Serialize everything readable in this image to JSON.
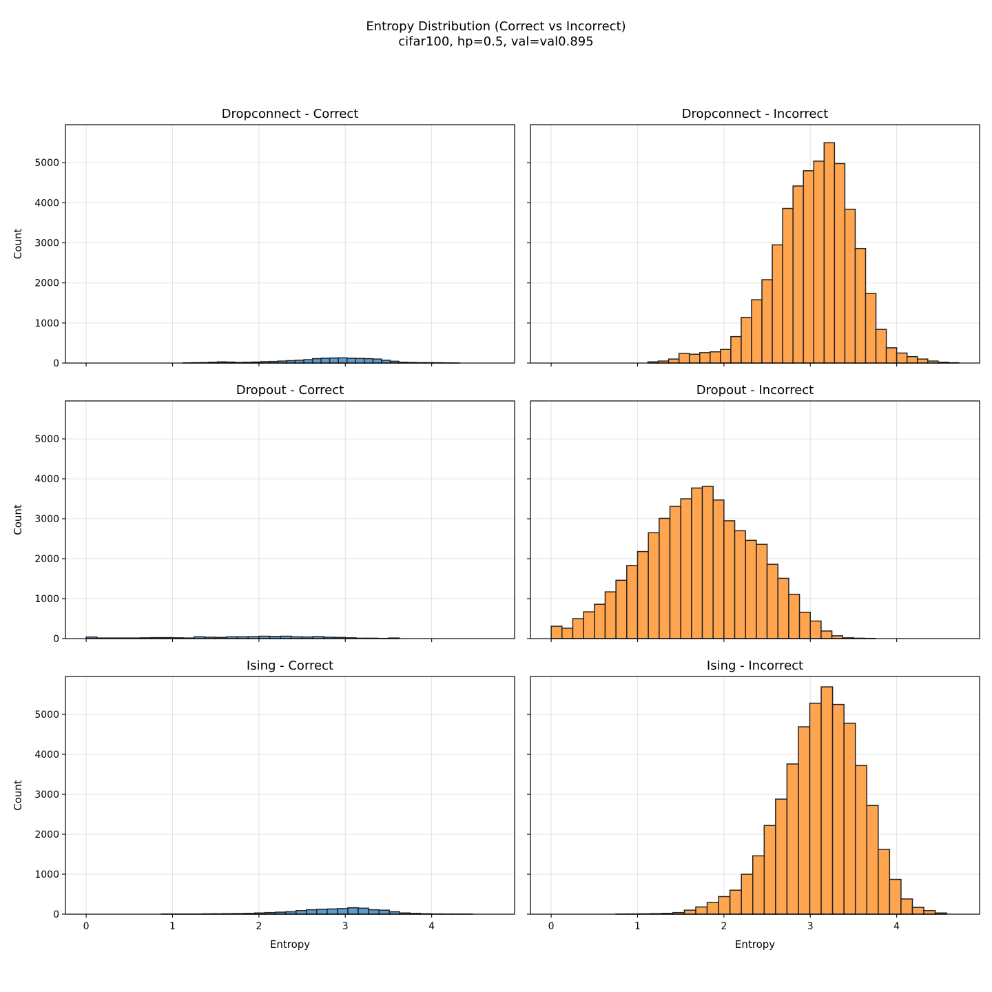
{
  "figure": {
    "title": "Entropy Distribution (Correct vs Incorrect)",
    "subtitle": "cifar100, hp=0.5, val=val0.895"
  },
  "colors": {
    "correct": "#5b9bcd",
    "incorrect": "#ffa54f",
    "edge": "#222222"
  },
  "chart_data": [
    {
      "type": "bar",
      "title": "Dropconnect - Correct",
      "series_kind": "correct",
      "ylabel": "Count",
      "xlabel": "",
      "xlim": [
        -0.24,
        4.96
      ],
      "ylim": [
        0,
        5950
      ],
      "xticks": [
        0,
        1,
        2,
        3,
        4
      ],
      "yticks": [
        0,
        1000,
        2000,
        3000,
        4000,
        5000
      ],
      "show_xticklabels": false,
      "show_yticklabels": true,
      "grid": true,
      "bin_start": 1.12,
      "bin_width": 0.1,
      "values": [
        5,
        10,
        12,
        20,
        30,
        25,
        15,
        20,
        25,
        35,
        40,
        50,
        60,
        70,
        85,
        110,
        120,
        125,
        130,
        120,
        115,
        110,
        100,
        70,
        45,
        20,
        15,
        10,
        10,
        8,
        5,
        3
      ]
    },
    {
      "type": "bar",
      "title": "Dropconnect - Incorrect",
      "series_kind": "incorrect",
      "ylabel": "",
      "xlabel": "",
      "xlim": [
        -0.24,
        4.96
      ],
      "ylim": [
        0,
        5950
      ],
      "xticks": [
        0,
        1,
        2,
        3,
        4
      ],
      "yticks": [
        0,
        1000,
        2000,
        3000,
        4000,
        5000
      ],
      "show_xticklabels": false,
      "show_yticklabels": false,
      "grid": true,
      "bin_start": 1.12,
      "bin_width": 0.12,
      "values": [
        30,
        50,
        100,
        240,
        220,
        260,
        280,
        340,
        660,
        1140,
        1580,
        2080,
        2950,
        3860,
        4420,
        4800,
        5040,
        5500,
        4980,
        3840,
        2860,
        1740,
        840,
        380,
        250,
        160,
        100,
        50,
        20,
        8
      ]
    },
    {
      "type": "bar",
      "title": "Dropout - Correct",
      "series_kind": "correct",
      "ylabel": "Count",
      "xlabel": "",
      "xlim": [
        -0.24,
        4.96
      ],
      "ylim": [
        0,
        5950
      ],
      "xticks": [
        0,
        1,
        2,
        3,
        4
      ],
      "yticks": [
        0,
        1000,
        2000,
        3000,
        4000,
        5000
      ],
      "show_xticklabels": false,
      "show_yticklabels": true,
      "grid": true,
      "bin_start": 0.0,
      "bin_width": 0.125,
      "values": [
        40,
        15,
        15,
        15,
        15,
        20,
        25,
        25,
        20,
        15,
        45,
        35,
        30,
        45,
        45,
        50,
        60,
        55,
        60,
        45,
        40,
        50,
        35,
        30,
        20,
        10,
        10,
        5,
        15
      ]
    },
    {
      "type": "bar",
      "title": "Dropout - Incorrect",
      "series_kind": "incorrect",
      "ylabel": "",
      "xlabel": "",
      "xlim": [
        -0.24,
        4.96
      ],
      "ylim": [
        0,
        5950
      ],
      "xticks": [
        0,
        1,
        2,
        3,
        4
      ],
      "yticks": [
        0,
        1000,
        2000,
        3000,
        4000,
        5000
      ],
      "show_xticklabels": false,
      "show_yticklabels": false,
      "grid": true,
      "bin_start": 0.0,
      "bin_width": 0.125,
      "values": [
        310,
        260,
        500,
        670,
        860,
        1170,
        1460,
        1830,
        2180,
        2650,
        3010,
        3310,
        3500,
        3770,
        3810,
        3470,
        2950,
        2700,
        2460,
        2360,
        1860,
        1510,
        1110,
        660,
        440,
        190,
        70,
        20,
        10,
        5
      ]
    },
    {
      "type": "bar",
      "title": "Ising - Correct",
      "series_kind": "correct",
      "ylabel": "Count",
      "xlabel": "Entropy",
      "xlim": [
        -0.24,
        4.96
      ],
      "ylim": [
        0,
        5950
      ],
      "xticks": [
        0,
        1,
        2,
        3,
        4
      ],
      "yticks": [
        0,
        1000,
        2000,
        3000,
        4000,
        5000
      ],
      "show_xticklabels": true,
      "show_yticklabels": true,
      "grid": true,
      "bin_start": 0.87,
      "bin_width": 0.12,
      "values": [
        3,
        3,
        3,
        3,
        8,
        10,
        12,
        15,
        20,
        30,
        40,
        50,
        60,
        90,
        110,
        120,
        130,
        140,
        160,
        150,
        110,
        100,
        60,
        30,
        20,
        10,
        5,
        3,
        2,
        2
      ]
    },
    {
      "type": "bar",
      "title": "Ising - Incorrect",
      "series_kind": "incorrect",
      "ylabel": "",
      "xlabel": "Entropy",
      "xlim": [
        -0.24,
        4.96
      ],
      "ylim": [
        0,
        5950
      ],
      "xticks": [
        0,
        1,
        2,
        3,
        4
      ],
      "yticks": [
        0,
        1000,
        2000,
        3000,
        4000,
        5000
      ],
      "show_xticklabels": true,
      "show_yticklabels": false,
      "grid": true,
      "bin_start": 0.75,
      "bin_width": 0.132,
      "values": [
        3,
        5,
        8,
        12,
        20,
        40,
        100,
        180,
        290,
        440,
        600,
        1000,
        1460,
        2220,
        2880,
        3760,
        4690,
        5280,
        5690,
        5250,
        4780,
        3720,
        2720,
        1620,
        870,
        380,
        170,
        90,
        30
      ]
    }
  ]
}
